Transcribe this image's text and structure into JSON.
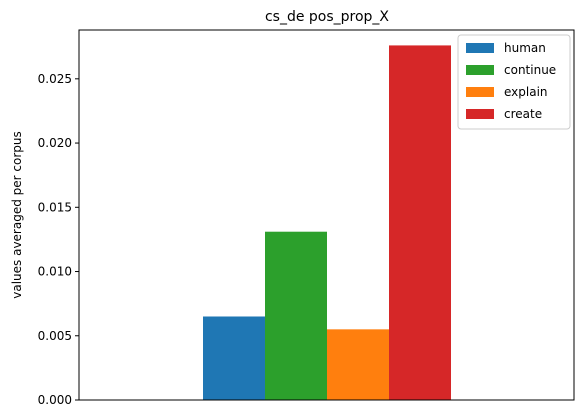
{
  "chart_data": {
    "type": "bar",
    "title": "cs_de pos_prop_X",
    "xlabel": "",
    "ylabel": "values averaged per corpus",
    "ylim": [
      0,
      0.0288
    ],
    "yticks": [
      "0.000",
      "0.005",
      "0.010",
      "0.015",
      "0.020",
      "0.025"
    ],
    "ytick_values": [
      0,
      0.005,
      0.01,
      0.015,
      0.02,
      0.025
    ],
    "categories": [
      ""
    ],
    "legend_position": "top-right",
    "series": [
      {
        "name": "human",
        "color": "#1f77b4",
        "values": [
          0.0065
        ]
      },
      {
        "name": "continue",
        "color": "#2ca02c",
        "values": [
          0.0131
        ]
      },
      {
        "name": "explain",
        "color": "#ff7f0e",
        "values": [
          0.0055
        ]
      },
      {
        "name": "create",
        "color": "#d62728",
        "values": [
          0.0276
        ]
      }
    ]
  }
}
